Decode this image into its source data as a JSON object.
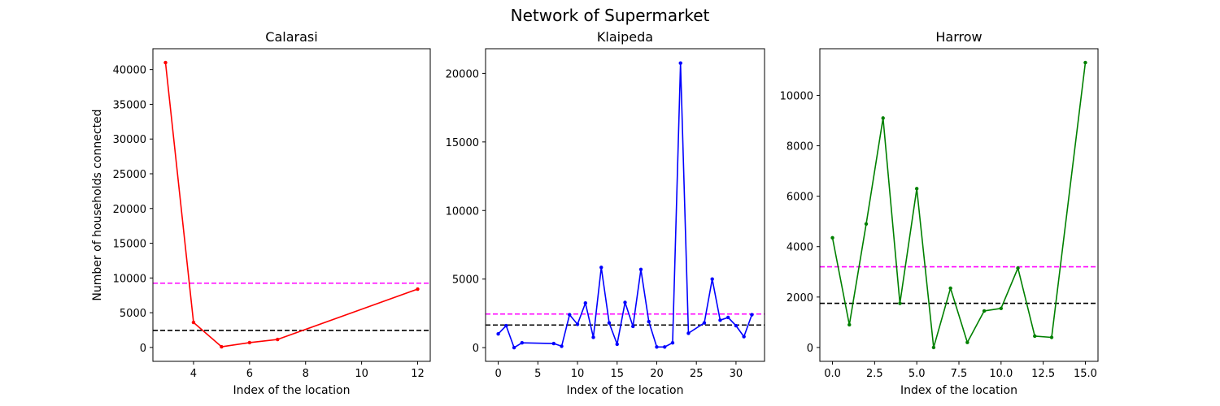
{
  "figure": {
    "title": "Network of Supermarket"
  },
  "chart_data": [
    {
      "type": "line",
      "title": "Calarasi",
      "xlabel": "Index of the location",
      "ylabel": "Number of households connected",
      "color": "#ff0000",
      "xlim": [
        2.55,
        12.45
      ],
      "ylim": [
        -2000,
        43000
      ],
      "xticks": [
        4,
        6,
        8,
        10,
        12
      ],
      "xtick_labels": [
        "4",
        "6",
        "8",
        "10",
        "12"
      ],
      "yticks": [
        0,
        5000,
        10000,
        15000,
        20000,
        25000,
        30000,
        35000,
        40000
      ],
      "ytick_labels": [
        "0",
        "5000",
        "10000",
        "15000",
        "20000",
        "25000",
        "30000",
        "35000",
        "40000"
      ],
      "x": [
        3,
        4,
        5,
        6,
        7,
        12
      ],
      "y": [
        41000,
        3600,
        100,
        700,
        1150,
        8400
      ],
      "hlines": [
        {
          "value": 9250,
          "color": "#ff00ff",
          "style": "dashed"
        },
        {
          "value": 2450,
          "color": "#000000",
          "style": "dashed"
        }
      ]
    },
    {
      "type": "line",
      "title": "Klaipeda",
      "xlabel": "Index of the location",
      "ylabel": "",
      "color": "#0000ff",
      "xlim": [
        -1.6,
        33.6
      ],
      "ylim": [
        -1000,
        21800
      ],
      "xticks": [
        0,
        5,
        10,
        15,
        20,
        25,
        30
      ],
      "xtick_labels": [
        "0",
        "5",
        "10",
        "15",
        "20",
        "25",
        "30"
      ],
      "yticks": [
        0,
        5000,
        10000,
        15000,
        20000
      ],
      "ytick_labels": [
        "0",
        "5000",
        "10000",
        "15000",
        "20000"
      ],
      "x": [
        0,
        1,
        2,
        3,
        7,
        8,
        9,
        10,
        11,
        12,
        13,
        14,
        15,
        16,
        17,
        18,
        19,
        20,
        21,
        22,
        23,
        24,
        26,
        27,
        28,
        29,
        30,
        31,
        32
      ],
      "y": [
        1000,
        1600,
        0,
        350,
        300,
        100,
        2400,
        1700,
        3250,
        750,
        5850,
        1800,
        250,
        3300,
        1550,
        5700,
        1900,
        50,
        50,
        350,
        20750,
        1050,
        1800,
        5000,
        2000,
        2200,
        1600,
        800,
        2400
      ],
      "hlines": [
        {
          "value": 2450,
          "color": "#ff00ff",
          "style": "dashed"
        },
        {
          "value": 1650,
          "color": "#000000",
          "style": "dashed"
        }
      ]
    },
    {
      "type": "line",
      "title": "Harrow",
      "xlabel": "Index of the location",
      "ylabel": "",
      "color": "#008000",
      "xlim": [
        -0.75,
        15.75
      ],
      "ylim": [
        -550,
        11850
      ],
      "xticks": [
        0,
        2.5,
        5,
        7.5,
        10,
        12.5,
        15
      ],
      "xtick_labels": [
        "0.0",
        "2.5",
        "5.0",
        "7.5",
        "10.0",
        "12.5",
        "15.0"
      ],
      "yticks": [
        0,
        2000,
        4000,
        6000,
        8000,
        10000
      ],
      "ytick_labels": [
        "0",
        "2000",
        "4000",
        "6000",
        "8000",
        "10000"
      ],
      "x": [
        0,
        1,
        2,
        3,
        4,
        5,
        6,
        7,
        8,
        9,
        10,
        11,
        12,
        13,
        15
      ],
      "y": [
        4350,
        900,
        4900,
        9100,
        1750,
        6300,
        0,
        2350,
        200,
        1450,
        1550,
        3150,
        450,
        400,
        11300
      ],
      "hlines": [
        {
          "value": 3200,
          "color": "#ff00ff",
          "style": "dashed"
        },
        {
          "value": 1750,
          "color": "#000000",
          "style": "dashed"
        }
      ]
    }
  ]
}
